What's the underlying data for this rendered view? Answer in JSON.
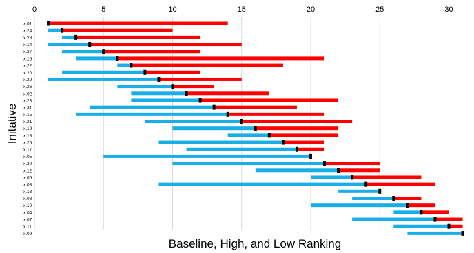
{
  "chart_data": {
    "type": "range-bar",
    "xlabel": "Baseline, High, and Low Ranking",
    "ylabel": "Initative",
    "xlim": [
      0,
      31
    ],
    "x_ticks": [
      "0",
      "5",
      "10",
      "15",
      "20",
      "25",
      "30"
    ],
    "grid": true,
    "colors": {
      "low_segment": "#1aaee8",
      "high_segment": "#ff0000",
      "baseline_marker": "#000000"
    },
    "categories": [
      "x.01",
      "x.24",
      "x.28",
      "x.14",
      "x.27",
      "x.16",
      "x.22",
      "x.20",
      "x.29",
      "x.26",
      "x.02",
      "x.23",
      "x.31",
      "x.15",
      "x.21",
      "x.19",
      "x.18",
      "x.25",
      "x.17",
      "x.05",
      "x.30",
      "x.12",
      "x.06",
      "x.03",
      "x.13",
      "x.08",
      "x.10",
      "x.04",
      "x.07",
      "x.11",
      "x.09"
    ],
    "series": [
      {
        "name": "Low",
        "values": [
          1,
          1,
          2,
          1,
          2,
          3,
          6,
          2,
          1,
          6,
          7,
          7,
          4,
          3,
          8,
          10,
          14,
          9,
          11,
          5,
          10,
          16,
          20,
          9,
          22,
          23,
          20,
          26,
          23,
          26,
          27
        ]
      },
      {
        "name": "Baseline",
        "values": [
          1,
          2,
          3,
          4,
          5,
          6,
          7,
          8,
          9,
          10,
          11,
          12,
          13,
          14,
          15,
          16,
          17,
          18,
          19,
          20,
          21,
          22,
          23,
          24,
          25,
          26,
          27,
          28,
          29,
          30,
          31
        ]
      },
      {
        "name": "High",
        "values": [
          14,
          10,
          12,
          15,
          12,
          21,
          18,
          12,
          15,
          13,
          17,
          22,
          19,
          21,
          23,
          22,
          22,
          21,
          21,
          20,
          25,
          25,
          28,
          29,
          25,
          28,
          29,
          30,
          31,
          31,
          31
        ]
      }
    ]
  }
}
